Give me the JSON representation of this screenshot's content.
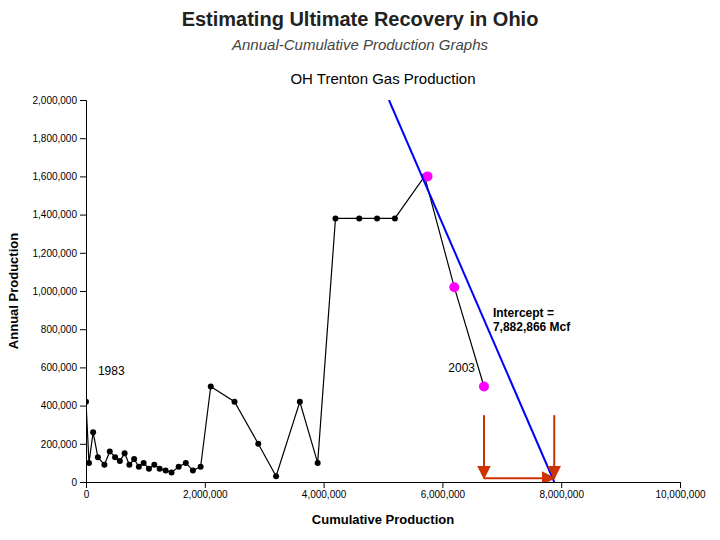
{
  "title": "Estimating Ultimate Recovery in Ohio",
  "subtitle": "Annual-Cumulative Production Graphs",
  "chart_data": {
    "type": "line",
    "title": "OH Trenton Gas Production",
    "x_label": "Cumulative Production",
    "y_label": "Annual Production",
    "xlim": [
      0,
      10000000
    ],
    "ylim": [
      0,
      2000000
    ],
    "xticks": [
      0,
      {
        "value": 2000000,
        "label": "2,000,000"
      },
      {
        "value": 4000000,
        "label": "4,000,000"
      },
      {
        "value": 6000000,
        "label": "6,000,000"
      },
      {
        "value": 8000000,
        "label": "8,000,000"
      },
      {
        "value": 10000000,
        "label": "10,000,000"
      }
    ],
    "yticks": [
      0,
      {
        "value": 200000,
        "label": "200,000"
      },
      {
        "value": 400000,
        "label": "400,000"
      },
      {
        "value": 600000,
        "label": "600,000"
      },
      {
        "value": 800000,
        "label": "800,000"
      },
      {
        "value": 1000000,
        "label": "1,000,000"
      },
      {
        "value": 1200000,
        "label": "1,200,000"
      },
      {
        "value": 1400000,
        "label": "1,400,000"
      },
      {
        "value": 1600000,
        "label": "1,600,000"
      },
      {
        "value": 1800000,
        "label": "1,800,000"
      },
      {
        "value": 2000000,
        "label": "2,000,000"
      }
    ],
    "grid": false,
    "series": [
      {
        "color": "#000000",
        "marker": "circle",
        "line_style": "solid",
        "x": [
          0,
          50000,
          120000,
          200000,
          310000,
          400000,
          490000,
          570000,
          650000,
          730000,
          810000,
          890000,
          970000,
          1060000,
          1150000,
          1240000,
          1340000,
          1440000,
          1560000,
          1680000,
          1800000,
          1930000,
          2100000,
          2500000,
          2900000,
          3200000,
          3600000,
          3900000,
          4200000,
          4600000,
          4900000,
          5200000,
          5700000,
          6200000,
          6700000
        ],
        "values": [
          420000,
          100000,
          260000,
          130000,
          90000,
          160000,
          130000,
          110000,
          150000,
          90000,
          120000,
          80000,
          100000,
          70000,
          90000,
          70000,
          60000,
          50000,
          80000,
          100000,
          60000,
          80000,
          500000,
          420000,
          200000,
          30000,
          420000,
          100000,
          1380000,
          1380000,
          1380000,
          1380000,
          1600000,
          1020000,
          500000
        ]
      },
      {
        "color": "#FF00FF",
        "marker": "circle",
        "line_style": "none",
        "x": [
          5750000,
          6200000,
          6700000
        ],
        "values": [
          1600000,
          1020000,
          500000
        ]
      },
      {
        "color": "#0000FF",
        "marker": "none",
        "line_style": "solid",
        "x": [
          5100000,
          7882866
        ],
        "values": [
          2000000,
          0
        ]
      }
    ],
    "annotations": [
      {
        "type": "arrow",
        "color": "#CC3300",
        "x": [
          6700000,
          6700000
        ],
        "y": [
          350000,
          20000
        ]
      },
      {
        "type": "arrow",
        "color": "#CC3300",
        "x": [
          7882866,
          7882866
        ],
        "y": [
          350000,
          20000
        ]
      },
      {
        "type": "arrow",
        "color": "#CC3300",
        "x": [
          6700000,
          7882866
        ],
        "y": [
          20000,
          20000
        ]
      },
      {
        "type": "text",
        "text": "Intercept =\n7,882,866 Mcf",
        "x": 6850000,
        "y": 850000
      },
      {
        "type": "text",
        "text": "1983",
        "x": 200000,
        "y": 580000
      },
      {
        "type": "text",
        "text": "2003",
        "x": 6100000,
        "y": 600000
      }
    ]
  }
}
